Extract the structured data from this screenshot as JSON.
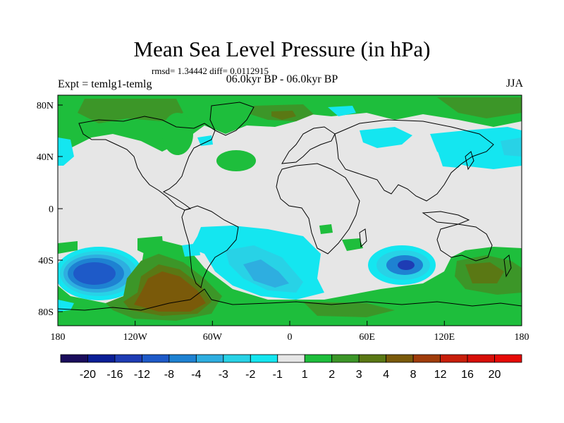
{
  "title": "Mean Sea Level Pressure (in hPa)",
  "stats": "rmsd= 1.34442 diff= 0.0112915",
  "subtitle": "06.0kyr BP - 06.0kyr BP",
  "experiment": "Expt = temlg1-temlg",
  "season": "JJA",
  "axes": {
    "lon_ticks": [
      "180",
      "120W",
      "60W",
      "0",
      "60E",
      "120E",
      "180"
    ],
    "lat_ticks": [
      "80N",
      "40N",
      "0",
      "40S",
      "80S"
    ]
  },
  "colorbar": {
    "labels": [
      "-20",
      "-16",
      "-12",
      "-8",
      "-4",
      "-3",
      "-2",
      "-1",
      "1",
      "2",
      "3",
      "4",
      "8",
      "12",
      "16",
      "20"
    ],
    "colors": [
      "#1a0d5c",
      "#0a1e96",
      "#1e3cb4",
      "#1e5ac8",
      "#1e82d2",
      "#2eaee0",
      "#28d2e6",
      "#14e6f0",
      "#e6e6e6",
      "#1ebe3c",
      "#3c9628",
      "#5a7814",
      "#7a5a0a",
      "#a03c0a",
      "#c81e0a",
      "#d70f08",
      "#e60a06"
    ]
  }
}
